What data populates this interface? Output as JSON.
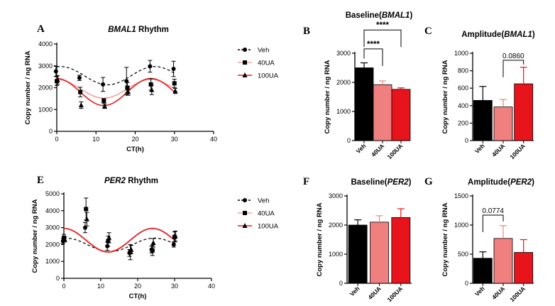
{
  "colors": {
    "veh": "#000000",
    "ua40": "#f08080",
    "ua100": "#e8141c",
    "fit40": "#f4a0a0",
    "fit100": "#e02020"
  },
  "chart_data": [
    {
      "id": "A",
      "letter": "A",
      "type": "scatter",
      "title_italic": "BMAL1",
      "title_rest": " Rhythm",
      "xlabel": "CT(h)",
      "ylabel": "Copy number / ng RNA",
      "xlim": [
        0,
        40
      ],
      "ylim": [
        0,
        4000
      ],
      "xticks": [
        0,
        10,
        20,
        30,
        40
      ],
      "yticks": [
        0,
        1000,
        2000,
        3000,
        4000
      ],
      "legend_position": "right",
      "series": [
        {
          "name": "Veh",
          "marker": "circle",
          "color": "#000000",
          "dashed": true,
          "x": [
            0,
            6,
            12,
            18,
            24,
            30
          ],
          "y": [
            2750,
            2450,
            2150,
            2300,
            2980,
            2860
          ],
          "err": [
            230,
            120,
            320,
            630,
            270,
            350
          ],
          "fit": {
            "mean": 2550,
            "amp": 420,
            "phase": 1
          }
        },
        {
          "name": "40UA",
          "marker": "square",
          "color": "#000000",
          "x": [
            0,
            6,
            12,
            18,
            24,
            30
          ],
          "y": [
            2300,
            1800,
            1400,
            2000,
            2150,
            2200
          ],
          "err": [
            200,
            220,
            100,
            230,
            260,
            190
          ],
          "fit": {
            "mean": 1950,
            "amp": 430,
            "phase": 0
          }
        },
        {
          "name": "100UA",
          "marker": "triangle",
          "color": "#000000",
          "x": [
            0,
            6,
            12,
            18,
            24,
            30
          ],
          "y": [
            2350,
            1200,
            1150,
            1800,
            1900,
            1850
          ],
          "err": [
            200,
            150,
            100,
            150,
            220,
            120
          ],
          "fit": {
            "mean": 1800,
            "amp": 620,
            "phase": 0
          }
        }
      ],
      "fit_colors": [
        "#000000",
        "#f4a0a0",
        "#e02020"
      ]
    },
    {
      "id": "B",
      "letter": "B",
      "type": "bar",
      "title_pre": "Baseline(",
      "title_italic": "BMAL1",
      "title_post": ")",
      "ylabel": "Copy number / ng RNA",
      "categories": [
        "Veh",
        "40UA",
        "100UA"
      ],
      "values": [
        2500,
        1920,
        1760
      ],
      "err": [
        170,
        130,
        50
      ],
      "ylim": [
        0,
        3000
      ],
      "yticks": [
        0,
        1000,
        2000,
        3000
      ],
      "annotations": [
        {
          "from": 0,
          "to": 1,
          "label": "****",
          "level": 3150
        },
        {
          "from": 0,
          "to": 2,
          "label": "****",
          "level": 3800
        }
      ]
    },
    {
      "id": "C",
      "letter": "C",
      "type": "bar",
      "title_pre": "Amplitude(",
      "title_italic": "BMAL1",
      "title_post": ")",
      "ylabel": "Copy number / ng RNA",
      "categories": [
        "Veh",
        "40UA",
        "100UA"
      ],
      "values": [
        460,
        385,
        650
      ],
      "err": [
        160,
        85,
        190
      ],
      "ylim": [
        0,
        1000
      ],
      "yticks": [
        0,
        200,
        400,
        600,
        800,
        1000
      ],
      "annotations": [
        {
          "from": 1,
          "to": 2,
          "label": "0.0860",
          "level": 920
        }
      ]
    },
    {
      "id": "E",
      "letter": "E",
      "type": "scatter",
      "title_italic": "PER2",
      "title_rest": " Rhythm",
      "xlabel": "CT(h)",
      "ylabel": "Copy number / ng RNA",
      "xlim": [
        0,
        40
      ],
      "ylim": [
        0,
        5000
      ],
      "xticks": [
        0,
        10,
        20,
        30,
        40
      ],
      "yticks": [
        0,
        1000,
        2000,
        3000,
        4000,
        5000
      ],
      "legend_position": "right",
      "series": [
        {
          "name": "Veh",
          "marker": "circle",
          "color": "#000000",
          "dashed": true,
          "x": [
            0,
            6,
            12,
            18,
            24,
            30
          ],
          "y": [
            2200,
            3000,
            1900,
            1500,
            1700,
            2000
          ],
          "err": [
            150,
            300,
            250,
            200,
            200,
            150
          ],
          "fit": {
            "mean": 1980,
            "amp": 400,
            "phase": 0.5
          }
        },
        {
          "name": "40UA",
          "marker": "square",
          "color": "#000000",
          "x": [
            0,
            6,
            12,
            18,
            24,
            30
          ],
          "y": [
            2400,
            4100,
            2200,
            1550,
            1650,
            2450
          ],
          "err": [
            200,
            650,
            300,
            450,
            300,
            300
          ],
          "fit": {
            "mean": 2280,
            "amp": 690,
            "phase": 0
          }
        },
        {
          "name": "100UA",
          "marker": "triangle",
          "color": "#000000",
          "x": [
            0,
            6,
            12,
            18,
            24,
            30
          ],
          "y": [
            2300,
            3500,
            2400,
            1700,
            2100,
            2500
          ],
          "err": [
            150,
            400,
            300,
            250,
            250,
            300
          ],
          "fit": {
            "mean": 2250,
            "amp": 700,
            "phase": 0
          }
        }
      ],
      "fit_colors": [
        "#000000",
        "#f4a0a0",
        "#e02020"
      ]
    },
    {
      "id": "F",
      "letter": "F",
      "type": "bar",
      "title_pre": "Baseline(",
      "title_italic": "PER2",
      "title_post": ")",
      "ylabel": "Copy number / ng RNA",
      "categories": [
        "Veh",
        "40UA",
        "100UA"
      ],
      "values": [
        2000,
        2100,
        2260
      ],
      "err": [
        180,
        220,
        300
      ],
      "ylim": [
        0,
        3000
      ],
      "yticks": [
        0,
        1000,
        2000,
        3000
      ],
      "annotations": []
    },
    {
      "id": "G",
      "letter": "G",
      "type": "bar",
      "title_pre": "Amplitude(",
      "title_italic": "PER2",
      "title_post": ")",
      "ylabel": "Copy number / ng RNA",
      "categories": [
        "Veh",
        "40UA",
        "100UA"
      ],
      "values": [
        430,
        770,
        530
      ],
      "err": [
        110,
        220,
        220
      ],
      "ylim": [
        0,
        1500
      ],
      "yticks": [
        0,
        500,
        1000,
        1500
      ],
      "annotations": [
        {
          "from": 0,
          "to": 1,
          "label": "0.0774",
          "level": 1170
        }
      ]
    }
  ]
}
